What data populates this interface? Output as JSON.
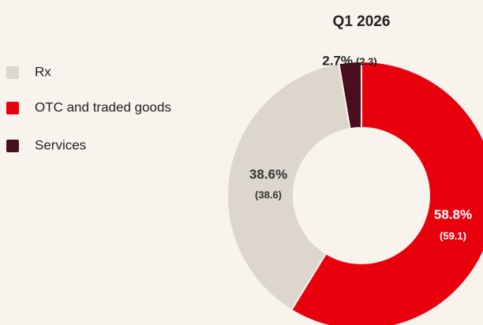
{
  "chart_data": {
    "type": "donut",
    "title": "Q1 2026",
    "categories": [
      "Rx",
      "OTC and traded goods",
      "Services"
    ],
    "values": [
      38.6,
      58.8,
      2.7
    ],
    "value_labels": [
      "38.6%",
      "58.8%",
      "2.7%"
    ],
    "previous_values": [
      38.6,
      59.1,
      2.3
    ],
    "previous_value_labels": [
      "(38.6)",
      "(59.1)",
      "(2.3)"
    ],
    "colors": [
      "#dcd6cc",
      "#e8000d",
      "#4a0e1e"
    ]
  }
}
